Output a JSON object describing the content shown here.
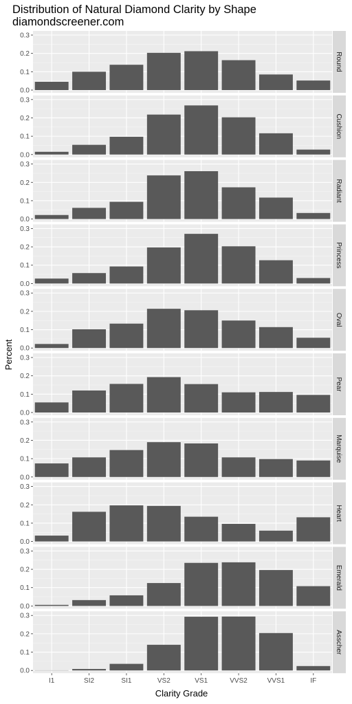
{
  "chart_data": {
    "type": "bar",
    "title": "Distribution of Natural Diamond Clarity by Shape",
    "subtitle": "diamondscreener.com",
    "xlabel": "Clarity Grade",
    "ylabel": "Percent",
    "ylim": [
      0,
      0.3
    ],
    "yticks": [
      "0.0",
      "0.1",
      "0.2",
      "0.3"
    ],
    "categories": [
      "I1",
      "SI2",
      "SI1",
      "VS2",
      "VS1",
      "VVS2",
      "VVS1",
      "IF"
    ],
    "facet_layout": "stacked vertically, one panel per shape, labels on right strips",
    "grid": true,
    "colors": {
      "bar": "#595959",
      "panel": "#ebebeb",
      "grid_major": "#ffffff",
      "strip": "#d9d9d9"
    },
    "series": [
      {
        "name": "Round",
        "values": [
          0.045,
          0.1,
          0.138,
          0.203,
          0.212,
          0.163,
          0.085,
          0.052
        ]
      },
      {
        "name": "Cushion",
        "values": [
          0.015,
          0.053,
          0.097,
          0.218,
          0.268,
          0.203,
          0.116,
          0.027
        ]
      },
      {
        "name": "Radiant",
        "values": [
          0.022,
          0.061,
          0.094,
          0.238,
          0.261,
          0.173,
          0.117,
          0.033
        ]
      },
      {
        "name": "Princess",
        "values": [
          0.027,
          0.057,
          0.093,
          0.197,
          0.271,
          0.203,
          0.127,
          0.03
        ]
      },
      {
        "name": "Oval",
        "values": [
          0.022,
          0.102,
          0.133,
          0.214,
          0.206,
          0.15,
          0.114,
          0.056
        ]
      },
      {
        "name": "Pear",
        "values": [
          0.055,
          0.12,
          0.156,
          0.193,
          0.155,
          0.11,
          0.112,
          0.096
        ]
      },
      {
        "name": "Marquise",
        "values": [
          0.074,
          0.107,
          0.147,
          0.19,
          0.183,
          0.107,
          0.098,
          0.09
        ]
      },
      {
        "name": "Heart",
        "values": [
          0.032,
          0.162,
          0.197,
          0.194,
          0.135,
          0.096,
          0.059,
          0.132
        ]
      },
      {
        "name": "Emerald",
        "values": [
          0.006,
          0.032,
          0.058,
          0.125,
          0.235,
          0.238,
          0.196,
          0.108
        ]
      },
      {
        "name": "Asscher",
        "values": [
          0.001,
          0.008,
          0.036,
          0.14,
          0.293,
          0.294,
          0.204,
          0.024
        ]
      }
    ]
  }
}
